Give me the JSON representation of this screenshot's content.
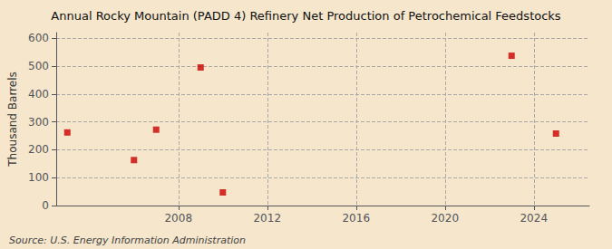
{
  "chart_data": {
    "type": "scatter",
    "title": "Annual Rocky Mountain (PADD 4) Refinery Net Production of Petrochemical Feedstocks",
    "ylabel": "Thousand Barrels",
    "annotations": [
      "Source: U.S. Energy Information Administration"
    ],
    "x": [
      2003,
      2006,
      2007,
      2009,
      2010,
      2023,
      2025
    ],
    "values": [
      262,
      163,
      272,
      495,
      47,
      537,
      258
    ],
    "color": "#cc0000",
    "marker": "square",
    "xlim": [
      2002.5,
      2026.5
    ],
    "xticks": [
      2008,
      2012,
      2016,
      2020,
      2024
    ],
    "ylim": [
      0,
      620
    ],
    "yticks": [
      0,
      100,
      200,
      300,
      400,
      500,
      600
    ],
    "grid": true
  }
}
